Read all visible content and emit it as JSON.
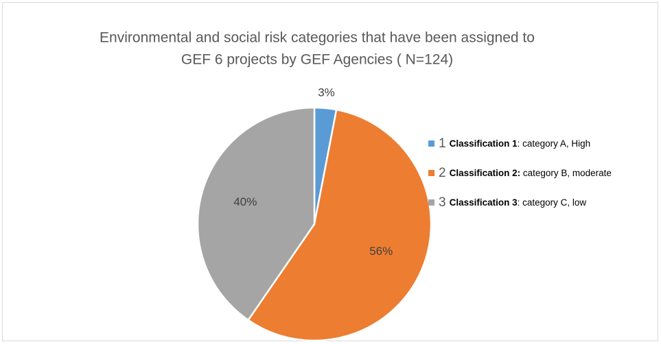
{
  "chart_data": {
    "type": "pie",
    "title": [
      "Environmental and social risk categories that have been assigned to",
      "GEF 6 projects by GEF Agencies ( N=124)"
    ],
    "categories": [
      "1",
      "2",
      "3"
    ],
    "legend_labels": [
      {
        "bold": "Classification 1",
        "text": ": category A, High"
      },
      {
        "bold": "Classification 2:",
        "text": " category B, moderate"
      },
      {
        "bold": "Classification 3",
        "text": ": category C, low"
      }
    ],
    "values": [
      3,
      56,
      40
    ],
    "value_labels": [
      "3%",
      "56%",
      "40%"
    ],
    "colors": [
      "#5b9bd5",
      "#ed7d31",
      "#a5a5a5"
    ],
    "legend": "right"
  }
}
